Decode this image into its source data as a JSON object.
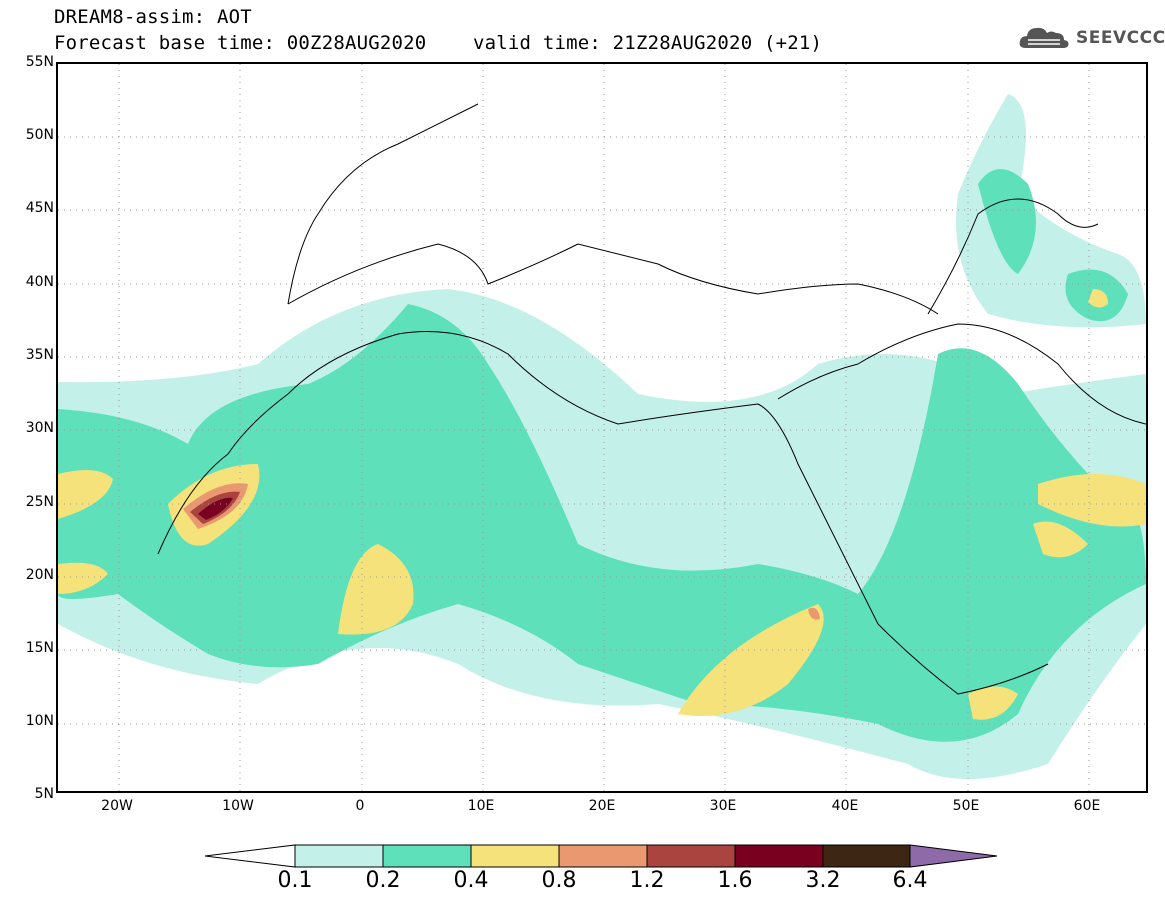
{
  "header": {
    "line1": "DREAM8-assim: AOT",
    "line2": "Forecast base time: 00Z28AUG2020    valid time: 21Z28AUG2020 (+21)"
  },
  "logo": {
    "text": "SEEVCCC",
    "icon": "cloud-icon"
  },
  "map": {
    "latitude_labels": [
      "55N",
      "50N",
      "45N",
      "40N",
      "35N",
      "30N",
      "25N",
      "20N",
      "15N",
      "10N",
      "5N"
    ],
    "longitude_labels": [
      "20W",
      "10W",
      "0",
      "10E",
      "20E",
      "30E",
      "40E",
      "50E",
      "60E"
    ]
  },
  "legend": {
    "levels": [
      "0.1",
      "0.2",
      "0.4",
      "0.8",
      "1.2",
      "1.6",
      "3.2",
      "6.4"
    ],
    "colors": [
      "#ffffff",
      "#c4f0ea",
      "#5ee0ba",
      "#f5e27a",
      "#ea9870",
      "#a9453e",
      "#7a0020",
      "#3d2614",
      "#8e6aa8"
    ]
  }
}
